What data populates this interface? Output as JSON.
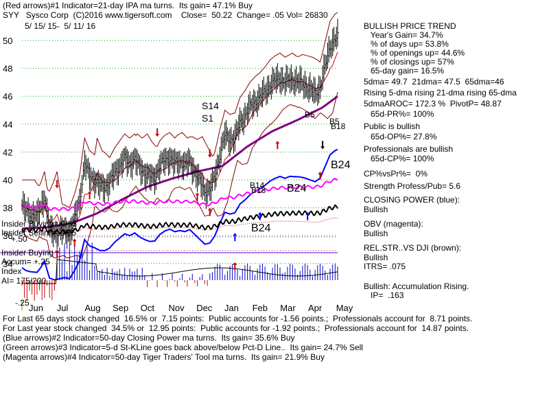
{
  "header": {
    "line1": "(Red arrows)#1 Indicator=21-day IPA ma turns.  Its gain= 47.1% Buy",
    "line2": "SYY   Sysco Corp  (C)2016 www.tigersoft.com    Close=  50.22  Change= .05 Vol= 26830",
    "line3": "5/ 15/ 15-  5/ 11/ 16"
  },
  "sidebar": [
    "BULLISH PRICE TREND",
    "   Year's Gain= 34.7%",
    "   % of days up= 53.8%",
    "   % of openings up= 44.6%",
    "   % of closings up= 57%",
    "   65-day gain= 16.5%",
    "5dma= 49.7  21dma= 47.5  65dma=46",
    "Rising 5-dma rising 21-dma rising 65-dma",
    "5dmaAROC= 172.3 %  PivotP= 48.87",
    "   65d-PR%= 100%",
    "Public is bullish",
    "   65d-OP%= 27.8%",
    "Professionals are bullish",
    "   65d-CP%= 100%",
    "CP%vsPr%=  0%",
    "Strength Profess/Pub= 5.6",
    "CLOSING POWER (blue):",
    "Bullish",
    "OBV (magenta):",
    "Bullish",
    "REL.STR..VS DJI (brown):",
    "Bullish",
    "ITRS= .075",
    "Bullish: Accumulation Rising.",
    "   IP=  .163"
  ],
  "footer": [
    "For Last 65 days stock changed  16.5% or  7.15 points:  Public accounts for -1.56 points.;  Professionals account for  8.71 points.",
    "For Last year stock changed  34.5% or  12.95 points:  Public accounts for -1.92 points.;  Professionals account for  14.87 points.",
    "(Blue arrows)#2 Indicator=50-day Closing Power ma turns.  Its gain= 35.6% Buy",
    "(Green arrows)#3 Indicator=5-d St-KLine goes back above/below Pct-D Line..  Its gain= 24.7% Sell",
    "(Magenta arrows)#4 Indicator=50-day Tiger Traders' Tool ma turns.  Its gain= 21.9% Buy"
  ],
  "insider": {
    "buying_count": "Insider Buying= 0/65",
    "selling_count": "Insider Selling= 0/65",
    "plus50": "+.50",
    "legend_buying": "Insider Buying",
    "accum": "Accum= +.25",
    "index": "Index",
    "ai": "AI= 175/200",
    "minus25": "-.25"
  },
  "annotations": {
    "S14": "S14",
    "S1": "S1",
    "B5": "B5",
    "B5b": "B5",
    "B18a": "B18",
    "B24_price": "B24",
    "B14": "B14",
    "B18b": "B18",
    "B24_mid": "B24",
    "B24_low": "B24"
  },
  "chart_data": {
    "type": "line",
    "title": "SYY   Sysco Corp",
    "y_ticks": [
      50,
      48,
      46,
      44,
      42,
      40,
      38,
      36,
      34
    ],
    "ylim": [
      33.5,
      51
    ],
    "x_month_labels": [
      "Jun",
      "Jul",
      "Aug",
      "Sep",
      "Oct",
      "Nov",
      "Dec",
      "Jan",
      "Feb",
      "Mar",
      "Apr",
      "May"
    ],
    "grid": true,
    "colors": {
      "price_bars": "#000000",
      "ma65": "#800080",
      "ma21": "#cc0000",
      "bands": "#800000",
      "closing_power": "#0000ff",
      "obv": "#ff00ff",
      "rel_str": "#000000",
      "accum_pos": "#0000cc",
      "accum_neg": "#cc0000",
      "ref_line": "#6600cc"
    },
    "series": [
      {
        "name": "",
        "x": [
          0,
          3,
          6,
          9,
          12,
          15,
          18,
          22,
          26,
          30,
          34,
          38,
          42,
          46,
          50,
          54,
          58,
          62,
          66,
          70,
          74,
          78,
          82,
          86,
          90,
          94,
          98,
          102,
          106,
          110,
          114,
          118,
          122,
          126,
          130,
          134,
          138,
          142,
          146,
          150,
          154,
          158,
          162,
          166,
          170,
          174,
          178,
          182,
          186,
          190,
          194,
          198,
          202,
          206,
          210,
          214,
          218,
          222,
          226,
          230,
          234,
          238,
          242,
          246,
          250,
          252
        ],
        "values": [
          38.2,
          37.8,
          37.6,
          37.5,
          37.4,
          38.0,
          38.8,
          36.5,
          36.2,
          36.3,
          36.4,
          36.2,
          37.2,
          38.5,
          41.2,
          40.3,
          40.0,
          39.6,
          39.5,
          39.8,
          40.5,
          41.0,
          41.5,
          41.2,
          41.5,
          40.9,
          40.5,
          40.2,
          40.2,
          41.0,
          41.4,
          41.6,
          41.2,
          41.3,
          41.1,
          41.3,
          40.6,
          39.9,
          39.2,
          39.3,
          40.2,
          41.8,
          43.2,
          42.9,
          43.0,
          44.1,
          44.6,
          45.2,
          45.6,
          45.9,
          46.3,
          46.8,
          47.1,
          47.3,
          47.0,
          47.2,
          47.1,
          47.0,
          46.8,
          46.5,
          46.2,
          46.6,
          48.1,
          49.6,
          50.1,
          50.22
        ]
      },
      {
        "name": "",
        "x": [
          0,
          20,
          40,
          60,
          80,
          100,
          120,
          140,
          160,
          180,
          200,
          220,
          240,
          252
        ],
        "values": [
          36.5,
          36.6,
          36.9,
          37.6,
          38.6,
          39.5,
          40.1,
          40.6,
          41.0,
          42.4,
          43.5,
          44.3,
          45.2,
          46.0
        ]
      }
    ]
  }
}
